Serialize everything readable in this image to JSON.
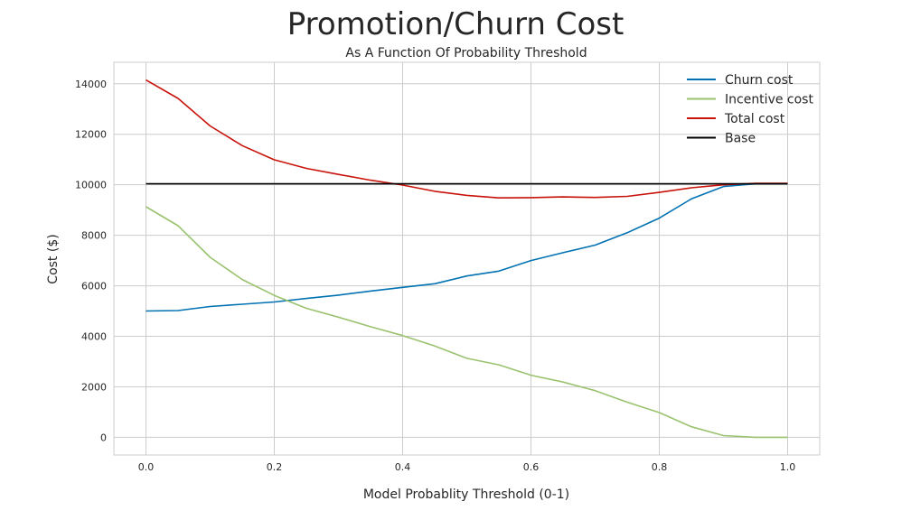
{
  "chart_data": {
    "type": "line",
    "title": "Promotion/Churn Cost",
    "subtitle": "As A Function Of Probability Threshold",
    "xlabel": "Model Probablity Threshold (0-1)",
    "ylabel": "Cost ($)",
    "xlim": [
      -0.05,
      1.05
    ],
    "ylim": [
      -700,
      14850
    ],
    "xticks": [
      0.0,
      0.2,
      0.4,
      0.6,
      0.8,
      1.0
    ],
    "xtick_labels": [
      "0.0",
      "0.2",
      "0.4",
      "0.6",
      "0.8",
      "1.0"
    ],
    "yticks": [
      0,
      2000,
      4000,
      6000,
      8000,
      10000,
      12000,
      14000
    ],
    "ytick_labels": [
      "0",
      "2000",
      "4000",
      "6000",
      "8000",
      "10000",
      "12000",
      "14000"
    ],
    "grid": true,
    "legend": "top-right",
    "x": [
      0.0,
      0.05,
      0.1,
      0.15,
      0.2,
      0.25,
      0.3,
      0.35,
      0.4,
      0.45,
      0.5,
      0.55,
      0.6,
      0.65,
      0.7,
      0.75,
      0.8,
      0.85,
      0.9,
      0.95,
      1.0
    ],
    "series": [
      {
        "name": "Churn cost",
        "color": "#0072b2",
        "values": [
          5000,
          5020,
          5180,
          5270,
          5360,
          5500,
          5630,
          5790,
          5940,
          6080,
          6390,
          6580,
          7000,
          7310,
          7610,
          8100,
          8680,
          9440,
          9930,
          10040,
          10040
        ]
      },
      {
        "name": "Incentive cost",
        "color": "#9ac26f",
        "values": [
          9130,
          8380,
          7130,
          6250,
          5620,
          5110,
          4760,
          4380,
          4030,
          3620,
          3130,
          2870,
          2460,
          2190,
          1850,
          1390,
          980,
          420,
          70,
          0,
          0
        ]
      },
      {
        "name": "Total cost",
        "color": "#c8120a",
        "values": [
          14150,
          13420,
          12330,
          11550,
          10990,
          10650,
          10410,
          10180,
          9990,
          9740,
          9580,
          9480,
          9490,
          9520,
          9500,
          9540,
          9700,
          9880,
          10000,
          10060,
          10060
        ]
      },
      {
        "name": "Base",
        "color": "#000000",
        "values": [
          10040,
          10040,
          10040,
          10040,
          10040,
          10040,
          10040,
          10040,
          10040,
          10040,
          10040,
          10040,
          10040,
          10040,
          10040,
          10040,
          10040,
          10040,
          10040,
          10040,
          10040
        ]
      }
    ]
  }
}
